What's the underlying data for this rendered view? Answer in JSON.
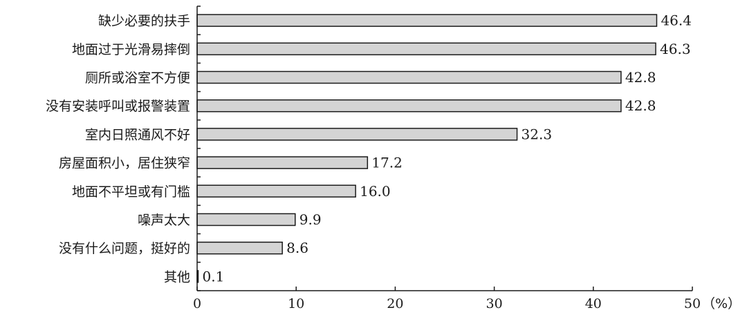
{
  "chart_data": {
    "type": "bar",
    "orientation": "horizontal",
    "categories": [
      "缺少必要的扶手",
      "地面过于光滑易摔倒",
      "厕所或浴室不方便",
      "没有安装呼叫或报警装置",
      "室内日照通风不好",
      "房屋面积小，居住狭窄",
      "地面不平坦或有门槛",
      "噪声太大",
      "没有什么问题，挺好的",
      "其他"
    ],
    "values": [
      46.4,
      46.3,
      42.8,
      42.8,
      32.3,
      17.2,
      16.0,
      9.9,
      8.6,
      0.1
    ],
    "value_labels": [
      "46.4",
      "46.3",
      "42.8",
      "42.8",
      "32.3",
      "17.2",
      "16.0",
      "9.9",
      "8.6",
      "0.1"
    ],
    "xlim": [
      0,
      50
    ],
    "xticks": [
      0,
      10,
      20,
      30,
      40,
      50
    ],
    "xtick_labels": [
      "0",
      "10",
      "20",
      "30",
      "40",
      "50"
    ],
    "unit": "（%）",
    "bar_color": "#d4d4d4",
    "edge_color": "#1a1a1a",
    "grid": false,
    "legend": "none"
  }
}
